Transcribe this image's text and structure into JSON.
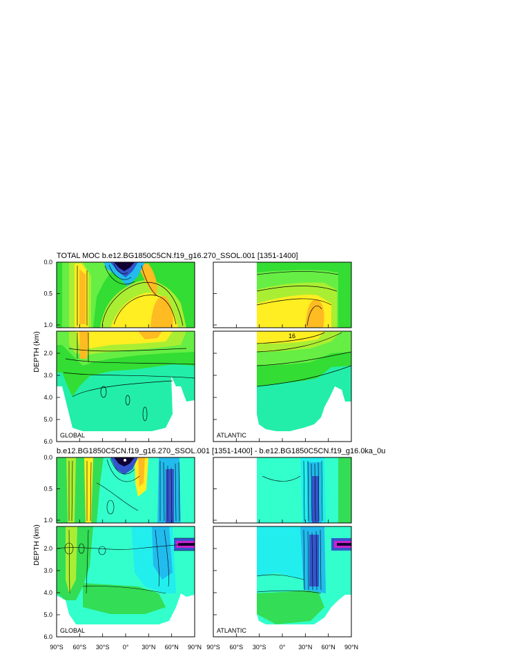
{
  "chart_data": [
    {
      "type": "contour",
      "title": "TOTAL MOC b.e12.BG1850C5CN.f19_g16.270_SSOL.001 [1351-1400]",
      "ylabel": "DEPTH (km)",
      "panels": [
        {
          "basin": "GLOBAL",
          "lat_range": [
            -90,
            90
          ],
          "lat_mask_start": -90
        },
        {
          "basin": "ATLANTIC",
          "lat_range": [
            -90,
            90
          ],
          "lat_mask_start": -34
        }
      ],
      "upper_yticks": [
        "0.0",
        "0.5",
        "1.0"
      ],
      "lower_yticks": [
        "2.0",
        "3.0",
        "4.0",
        "5.0",
        "6.0"
      ],
      "upper_ylim": [
        0,
        1.0
      ],
      "lower_ylim": [
        1.0,
        6.0
      ],
      "contour_label": "16",
      "colors": {
        "green": "#33dd33",
        "light_green": "#66ee44",
        "yellow_green": "#aaee33",
        "yellow": "#ffee22",
        "orange": "#ffbb22",
        "aqua": "#22eeaa",
        "navy": "#110033"
      }
    },
    {
      "type": "contour",
      "title": "b.e12.BG1850C5CN.f19_g16.270_SSOL.001 [1351-1400] - b.e12.BG1850C5CN.f19_g16.0ka_0u",
      "ylabel": "DEPTH (km)",
      "panels": [
        {
          "basin": "GLOBAL",
          "lat_range": [
            -90,
            90
          ],
          "lat_mask_start": -90
        },
        {
          "basin": "ATLANTIC",
          "lat_range": [
            -90,
            90
          ],
          "lat_mask_start": -34
        }
      ],
      "upper_yticks": [
        "0.0",
        "0.5",
        "1.0"
      ],
      "lower_yticks": [
        "2.0",
        "3.0",
        "4.0",
        "5.0",
        "6.0"
      ],
      "upper_ylim": [
        0,
        1.0
      ],
      "lower_ylim": [
        1.0,
        6.0
      ],
      "colors": {
        "cyan": "#22eeee",
        "aqua": "#33ffcc",
        "green": "#33dd55",
        "light_blue": "#22bbee",
        "navy": "#110033",
        "magenta": "#cc22cc"
      }
    }
  ],
  "xaxis": {
    "tick_labels_global": [
      "90°S",
      "60°S",
      "30°S",
      "0°",
      "30°N",
      "60°N",
      "90°N"
    ],
    "tick_labels_atlantic": [
      "90°S",
      "60°S",
      "30°S",
      "0°",
      "30°N",
      "60°N",
      "90°N"
    ]
  }
}
